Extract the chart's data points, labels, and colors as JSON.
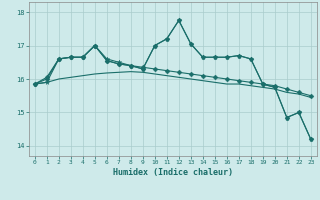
{
  "title": "",
  "xlabel": "Humidex (Indice chaleur)",
  "ylabel": "",
  "bg_color": "#ceeaea",
  "grid_color": "#aacccc",
  "line_color": "#1a6e6a",
  "xlim": [
    -0.5,
    23.5
  ],
  "ylim": [
    13.7,
    18.3
  ],
  "yticks": [
    14,
    15,
    16,
    17,
    18
  ],
  "xticks": [
    0,
    1,
    2,
    3,
    4,
    5,
    6,
    7,
    8,
    9,
    10,
    11,
    12,
    13,
    14,
    15,
    16,
    17,
    18,
    19,
    20,
    21,
    22,
    23
  ],
  "series": [
    {
      "x": [
        0,
        1,
        2,
        3,
        4,
        5,
        6,
        7,
        8,
        9,
        10,
        11,
        12,
        13,
        14,
        15,
        16,
        17,
        18,
        19,
        20,
        21,
        22,
        23
      ],
      "y": [
        15.85,
        15.9,
        16.0,
        16.05,
        16.1,
        16.15,
        16.18,
        16.2,
        16.22,
        16.2,
        16.15,
        16.1,
        16.05,
        16.0,
        15.95,
        15.9,
        15.85,
        15.85,
        15.8,
        15.75,
        15.7,
        15.6,
        15.55,
        15.45
      ],
      "marker": "",
      "markersize": 0
    },
    {
      "x": [
        0,
        1,
        2,
        3,
        4,
        5,
        6,
        7,
        8,
        9,
        10,
        11,
        12,
        13,
        14,
        15,
        16,
        17,
        18,
        19,
        20,
        21,
        22,
        23
      ],
      "y": [
        15.85,
        16.0,
        16.6,
        16.65,
        16.65,
        17.0,
        16.55,
        16.45,
        16.4,
        16.35,
        16.3,
        16.25,
        16.2,
        16.15,
        16.1,
        16.05,
        16.0,
        15.95,
        15.9,
        15.85,
        15.8,
        15.7,
        15.6,
        15.5
      ],
      "marker": "D",
      "markersize": 2.5
    },
    {
      "x": [
        0,
        1,
        2,
        3,
        4,
        5,
        6,
        7,
        8,
        9,
        10,
        11,
        12,
        13,
        14,
        15,
        16,
        17,
        18,
        19,
        20,
        21,
        22,
        23
      ],
      "y": [
        15.85,
        15.9,
        16.6,
        16.65,
        16.65,
        17.0,
        16.6,
        16.5,
        16.4,
        16.3,
        17.0,
        17.2,
        17.75,
        17.05,
        16.65,
        16.65,
        16.65,
        16.7,
        16.6,
        15.85,
        15.75,
        14.85,
        15.0,
        14.2
      ],
      "marker": "*",
      "markersize": 3.5
    },
    {
      "x": [
        0,
        1,
        2,
        3,
        4,
        5,
        6,
        7,
        8,
        9,
        10,
        11,
        12,
        13,
        14,
        15,
        16,
        17,
        18,
        19,
        20,
        21,
        22,
        23
      ],
      "y": [
        15.85,
        16.05,
        16.6,
        16.65,
        16.65,
        17.0,
        16.55,
        16.45,
        16.4,
        16.3,
        17.0,
        17.2,
        17.75,
        17.05,
        16.65,
        16.65,
        16.65,
        16.7,
        16.6,
        15.85,
        15.75,
        14.85,
        15.0,
        14.2
      ],
      "marker": "D",
      "markersize": 2.5
    }
  ]
}
